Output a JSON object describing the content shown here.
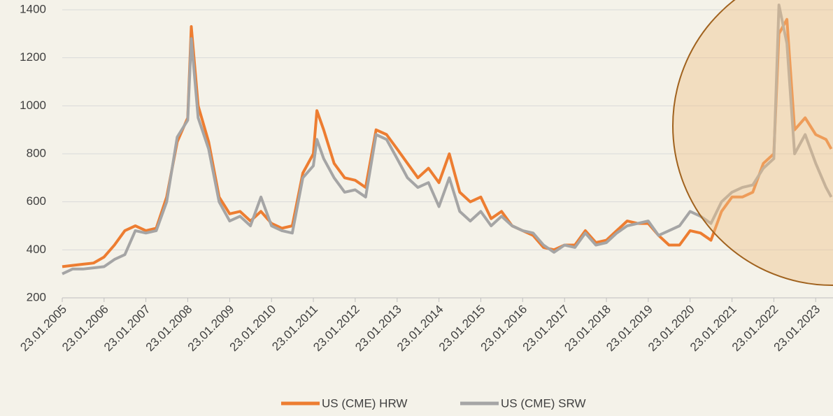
{
  "chart_data": {
    "type": "line",
    "x": [
      "23.01.2005",
      "23.04.2005",
      "23.07.2005",
      "23.10.2005",
      "23.01.2006",
      "23.04.2006",
      "23.07.2006",
      "23.10.2006",
      "23.01.2007",
      "23.04.2007",
      "23.07.2007",
      "23.10.2007",
      "23.01.2008",
      "23.02.2008",
      "23.04.2008",
      "23.07.2008",
      "23.10.2008",
      "23.01.2009",
      "23.04.2009",
      "23.07.2009",
      "23.10.2009",
      "23.01.2010",
      "23.04.2010",
      "23.07.2010",
      "23.10.2010",
      "23.01.2011",
      "23.02.2011",
      "23.04.2011",
      "23.07.2011",
      "23.10.2011",
      "23.01.2012",
      "23.04.2012",
      "23.07.2012",
      "23.10.2012",
      "23.01.2013",
      "23.04.2013",
      "23.07.2013",
      "23.10.2013",
      "23.01.2014",
      "23.04.2014",
      "23.07.2014",
      "23.10.2014",
      "23.01.2015",
      "23.04.2015",
      "23.07.2015",
      "23.10.2015",
      "23.01.2016",
      "23.04.2016",
      "23.07.2016",
      "23.10.2016",
      "23.01.2017",
      "23.04.2017",
      "23.07.2017",
      "23.10.2017",
      "23.01.2018",
      "23.04.2018",
      "23.07.2018",
      "23.10.2018",
      "23.01.2019",
      "23.04.2019",
      "23.07.2019",
      "23.10.2019",
      "23.01.2020",
      "23.04.2020",
      "23.07.2020",
      "23.10.2020",
      "23.01.2021",
      "23.04.2021",
      "23.07.2021",
      "23.10.2021",
      "23.01.2022",
      "08.03.2022",
      "17.05.2022",
      "23.07.2022",
      "23.10.2022",
      "23.01.2023",
      "23.04.2023",
      "08.06.2023"
    ],
    "series": [
      {
        "name": "US (CME) HRW",
        "color": "#ed7d31",
        "values": [
          330,
          335,
          340,
          345,
          370,
          420,
          480,
          500,
          480,
          490,
          620,
          850,
          950,
          1330,
          1000,
          850,
          620,
          550,
          560,
          520,
          560,
          510,
          490,
          500,
          720,
          800,
          980,
          900,
          760,
          700,
          690,
          660,
          900,
          880,
          820,
          760,
          700,
          740,
          680,
          800,
          640,
          600,
          620,
          530,
          560,
          500,
          480,
          460,
          410,
          400,
          420,
          420,
          480,
          430,
          440,
          480,
          520,
          510,
          510,
          460,
          420,
          420,
          480,
          470,
          440,
          560,
          620,
          620,
          640,
          760,
          800,
          1300,
          1360,
          900,
          950,
          880,
          860,
          820
        ]
      },
      {
        "name": "US (CME) SRW",
        "color": "#a5a5a5",
        "values": [
          300,
          320,
          320,
          325,
          330,
          360,
          380,
          480,
          470,
          480,
          600,
          870,
          940,
          1280,
          950,
          820,
          600,
          520,
          540,
          500,
          620,
          500,
          480,
          470,
          700,
          750,
          860,
          780,
          700,
          640,
          650,
          620,
          880,
          860,
          780,
          700,
          660,
          680,
          580,
          700,
          560,
          520,
          560,
          500,
          540,
          500,
          480,
          470,
          420,
          390,
          420,
          410,
          470,
          420,
          430,
          470,
          500,
          510,
          520,
          460,
          480,
          500,
          560,
          540,
          510,
          600,
          640,
          660,
          670,
          740,
          780,
          1420,
          1260,
          800,
          880,
          760,
          660,
          620
        ]
      }
    ],
    "xlim": [
      "23.01.2005",
      "23.06.2023"
    ],
    "xticks": [
      "23.01.2005",
      "23.01.2006",
      "23.01.2007",
      "23.01.2008",
      "23.01.2009",
      "23.01.2010",
      "23.01.2011",
      "23.01.2012",
      "23.01.2013",
      "23.01.2014",
      "23.01.2015",
      "23.01.2016",
      "23.01.2017",
      "23.01.2018",
      "23.01.2019",
      "23.01.2020",
      "23.01.2021",
      "23.01.2022",
      "23.01.2023"
    ],
    "ylim": [
      200,
      1400
    ],
    "yticks": [
      200,
      400,
      600,
      800,
      1000,
      1200,
      1400
    ],
    "grid": true,
    "legend": "bottom"
  }
}
